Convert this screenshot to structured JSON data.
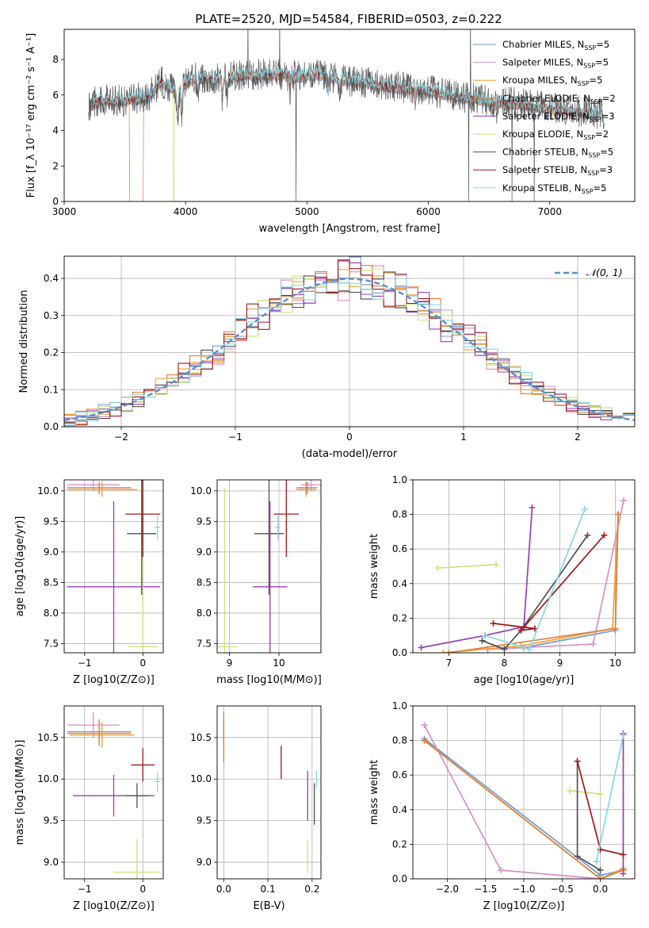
{
  "title": "PLATE=2520, MJD=54584, FIBERID=0503, z=0.222",
  "colors": {
    "Chabrier MILES": "#6a9bd6",
    "Salpeter MILES": "#d78fc9",
    "Kroupa MILES": "#f0a033",
    "Chabrier ELODIE": "#e0803a",
    "Salpeter ELODIE": "#9a3eb0",
    "Kroupa ELODIE": "#cfe07a",
    "Chabrier STELIB": "#505050",
    "Salpeter STELIB": "#a01818",
    "Kroupa STELIB": "#86d8e4"
  },
  "chart_data": [
    {
      "type": "line",
      "xlabel": "wavelength [Angstrom, rest frame]",
      "ylabel": "Flux [f_λ 10⁻¹⁷ erg cm⁻² s⁻¹ A⁻¹]",
      "xlim": [
        3000,
        7700
      ],
      "ylim": [
        0,
        9.7
      ],
      "xticks": [
        3000,
        4000,
        5000,
        6000,
        7000
      ],
      "yticks": [
        0,
        2,
        4,
        6,
        8
      ],
      "legend_position": "right",
      "grid": false,
      "legend": [
        {
          "name": "Chabrier MILES",
          "label": "Chabrier MILES, N",
          "sub": "SSP",
          "tail": "=5"
        },
        {
          "name": "Salpeter MILES",
          "label": "Salpeter MILES, N",
          "sub": "SSP",
          "tail": "=5"
        },
        {
          "name": "Kroupa MILES",
          "label": "Kroupa MILES, N",
          "sub": "SSP",
          "tail": "=5"
        },
        {
          "name": "Chabrier ELODIE",
          "label": "Chabrier ELODIE, N",
          "sub": "SSP",
          "tail": "=2"
        },
        {
          "name": "Salpeter ELODIE",
          "label": "Salpeter ELODIE, N",
          "sub": "SSP",
          "tail": "=3"
        },
        {
          "name": "Kroupa ELODIE",
          "label": "Kroupa ELODIE, N",
          "sub": "SSP",
          "tail": "=2"
        },
        {
          "name": "Chabrier STELIB",
          "label": "Chabrier STELIB, N",
          "sub": "SSP",
          "tail": "=5"
        },
        {
          "name": "Salpeter STELIB",
          "label": "Salpeter STELIB, N",
          "sub": "SSP",
          "tail": "=3"
        },
        {
          "name": "Kroupa STELIB",
          "label": "Kroupa STELIB, N",
          "sub": "SSP",
          "tail": "=5"
        }
      ],
      "continuum": [
        [
          3200,
          5.3
        ],
        [
          3300,
          5.7
        ],
        [
          3500,
          5.6
        ],
        [
          3700,
          5.9
        ],
        [
          3800,
          6.7
        ],
        [
          3950,
          6.0
        ],
        [
          4000,
          6.7
        ],
        [
          4100,
          6.9
        ],
        [
          4300,
          6.9
        ],
        [
          4500,
          7.1
        ],
        [
          4700,
          7.1
        ],
        [
          4900,
          7.0
        ],
        [
          5100,
          7.1
        ],
        [
          5300,
          6.8
        ],
        [
          5500,
          6.6
        ],
        [
          5700,
          6.4
        ],
        [
          6000,
          6.2
        ],
        [
          6200,
          5.9
        ],
        [
          6500,
          5.6
        ],
        [
          6800,
          5.4
        ],
        [
          7100,
          5.1
        ],
        [
          7400,
          4.9
        ]
      ],
      "absorption_features": [
        [
          3934,
          1.6
        ],
        [
          3968,
          1.5
        ],
        [
          4102,
          1.0
        ],
        [
          4227,
          0.5
        ],
        [
          4304,
          1.2
        ],
        [
          4340,
          1.0
        ],
        [
          4861,
          0.8
        ],
        [
          5175,
          0.9
        ],
        [
          5270,
          0.5
        ],
        [
          5893,
          0.6
        ],
        [
          6563,
          0.7
        ]
      ],
      "series_start": [
        3205,
        3210,
        3215,
        3220,
        3225,
        3230,
        3200,
        3235,
        3240
      ],
      "series_end": [
        7400,
        7405,
        7410,
        7415,
        7420,
        7425,
        7450,
        7430,
        7435
      ],
      "model_dropouts": [
        {
          "name": "Chabrier ELODIE",
          "start": 3540,
          "end": 3650
        },
        {
          "name": "Kroupa ELODIE",
          "start": 3900,
          "end": 3905
        },
        {
          "name": "Salpeter MILES",
          "start": 7420,
          "end": 7430
        }
      ]
    },
    {
      "type": "line",
      "xlabel": "(data-model)/error",
      "ylabel": "Normed distribution",
      "xlim": [
        -2.5,
        2.5
      ],
      "ylim": [
        0,
        0.46
      ],
      "xticks": [
        -2,
        -1,
        0,
        1,
        2
      ],
      "yticks": [
        0.0,
        0.1,
        0.2,
        0.3,
        0.4
      ],
      "grid": true,
      "legend_position": "top-right",
      "gaussian_label": "𝒩(0, 1)",
      "bin_width": 0.1,
      "peak_bin_value": [
        0.33,
        0.37,
        0.36,
        0.38,
        0.36,
        0.35,
        0.35,
        0.36,
        0.34
      ],
      "bin_values_by_series": [
        [
          0.05,
          0.04,
          0.05,
          0.12,
          0.11,
          0.1,
          0.14,
          0.12,
          0.16,
          0.18,
          0.22,
          0.2,
          0.24,
          0.26,
          0.28,
          0.3,
          0.32,
          0.34,
          0.33,
          0.38,
          0.36,
          0.37,
          0.35,
          0.39,
          0.4,
          0.39,
          0.41,
          0.38,
          0.37,
          0.36,
          0.31,
          0.3,
          0.29,
          0.27,
          0.24,
          0.2,
          0.19,
          0.16,
          0.15,
          0.14,
          0.13,
          0.1,
          0.09,
          0.08,
          0.07,
          0.06,
          0.05,
          0.05,
          0.04,
          0.04
        ]
      ]
    },
    {
      "type": "scatter",
      "xlabel": "Z [log10(Z/Z⊙)]",
      "ylabel": "age [log10(age/yr)]",
      "xlim": [
        -1.35,
        0.35
      ],
      "ylim": [
        7.35,
        10.18
      ],
      "xticks": [
        -1,
        0
      ],
      "yticks": [
        7.5,
        8.0,
        8.5,
        9.0,
        9.5,
        10.0
      ],
      "grid": true,
      "points": [
        {
          "name": "Chabrier MILES",
          "x": -0.75,
          "y": 10.05,
          "xerr": 0.55,
          "yerr": 0.1
        },
        {
          "name": "Salpeter MILES",
          "x": -0.85,
          "y": 10.1,
          "xerr": 0.45,
          "yerr": 0.1
        },
        {
          "name": "Kroupa MILES",
          "x": -0.7,
          "y": 10.02,
          "xerr": 0.6,
          "yerr": 0.12
        },
        {
          "name": "Chabrier ELODIE",
          "x": -0.75,
          "y": 10.05,
          "xerr": 0.55,
          "yerr": 0.1
        },
        {
          "name": "Salpeter ELODIE",
          "x": -0.5,
          "y": 8.43,
          "xerr": 0.8,
          "yerr": 1.4
        },
        {
          "name": "Kroupa ELODIE",
          "x": 0.0,
          "y": 7.45,
          "xerr": 0.25,
          "yerr": 2.6
        },
        {
          "name": "Chabrier STELIB",
          "x": -0.02,
          "y": 9.3,
          "xerr": 0.25,
          "yerr": 1.0
        },
        {
          "name": "Salpeter STELIB",
          "x": 0.0,
          "y": 9.62,
          "xerr": 0.3,
          "yerr": 0.7
        },
        {
          "name": "Kroupa STELIB",
          "x": 0.25,
          "y": 9.4,
          "xerr": 0.05,
          "yerr": 0.2
        }
      ]
    },
    {
      "type": "scatter",
      "xlabel": "mass [log10(M/M⊙)]",
      "ylabel": "",
      "xlim": [
        8.75,
        10.85
      ],
      "ylim": [
        7.35,
        10.18
      ],
      "xticks": [
        9,
        10
      ],
      "yticks": [
        7.5,
        8.0,
        8.5,
        9.0,
        9.5,
        10.0
      ],
      "grid": true,
      "points": [
        {
          "name": "Chabrier MILES",
          "x": 10.58,
          "y": 10.05,
          "xerr": 0.2,
          "yerr": 0.1
        },
        {
          "name": "Salpeter MILES",
          "x": 10.65,
          "y": 10.1,
          "xerr": 0.2,
          "yerr": 0.1
        },
        {
          "name": "Kroupa MILES",
          "x": 10.55,
          "y": 10.02,
          "xerr": 0.2,
          "yerr": 0.12
        },
        {
          "name": "Chabrier ELODIE",
          "x": 10.55,
          "y": 10.05,
          "xerr": 0.2,
          "yerr": 0.1
        },
        {
          "name": "Salpeter ELODIE",
          "x": 9.82,
          "y": 8.43,
          "xerr": 0.35,
          "yerr": 1.4
        },
        {
          "name": "Kroupa ELODIE",
          "x": 8.9,
          "y": 7.45,
          "xerr": 0.25,
          "yerr": 2.6
        },
        {
          "name": "Chabrier STELIB",
          "x": 9.8,
          "y": 9.3,
          "xerr": 0.3,
          "yerr": 1.0
        },
        {
          "name": "Salpeter STELIB",
          "x": 10.15,
          "y": 9.62,
          "xerr": 0.25,
          "yerr": 0.7
        },
        {
          "name": "Kroupa STELIB",
          "x": 9.98,
          "y": 9.4,
          "xerr": 0.05,
          "yerr": 0.2
        }
      ]
    },
    {
      "type": "line",
      "xlabel": "age [log10(age/yr)]",
      "ylabel": "mass weight",
      "xlim": [
        6.35,
        10.35
      ],
      "ylim": [
        0,
        1.0
      ],
      "xticks": [
        7,
        8,
        9,
        10
      ],
      "yticks": [
        0.0,
        0.2,
        0.4,
        0.6,
        0.8,
        1.0
      ],
      "grid": true,
      "series": [
        {
          "name": "Chabrier MILES",
          "points": [
            [
              7.7,
              0.02
            ],
            [
              8.35,
              0.03
            ],
            [
              10.0,
              0.13
            ],
            [
              10.05,
              0.8
            ]
          ]
        },
        {
          "name": "Salpeter MILES",
          "points": [
            [
              7.7,
              0.02
            ],
            [
              9.6,
              0.05
            ],
            [
              10.15,
              0.88
            ]
          ]
        },
        {
          "name": "Kroupa MILES",
          "points": [
            [
              6.9,
              0.0
            ],
            [
              8.3,
              0.04
            ],
            [
              9.95,
              0.14
            ],
            [
              10.05,
              0.8
            ]
          ]
        },
        {
          "name": "Chabrier ELODIE",
          "points": [
            [
              7.0,
              0.0
            ],
            [
              10.0,
              0.14
            ],
            [
              10.05,
              0.8
            ]
          ]
        },
        {
          "name": "Salpeter ELODIE",
          "points": [
            [
              6.5,
              0.03
            ],
            [
              7.65,
              0.1
            ],
            [
              8.35,
              0.15
            ],
            [
              8.5,
              0.84
            ]
          ]
        },
        {
          "name": "Kroupa ELODIE",
          "points": [
            [
              6.8,
              0.49
            ],
            [
              7.85,
              0.51
            ]
          ]
        },
        {
          "name": "Chabrier STELIB",
          "points": [
            [
              7.6,
              0.07
            ],
            [
              8.0,
              0.02
            ],
            [
              8.3,
              0.13
            ],
            [
              9.5,
              0.68
            ]
          ]
        },
        {
          "name": "Salpeter STELIB",
          "points": [
            [
              7.8,
              0.17
            ],
            [
              8.55,
              0.14
            ],
            [
              8.3,
              0.13
            ],
            [
              9.8,
              0.68
            ]
          ]
        },
        {
          "name": "Kroupa STELIB",
          "points": [
            [
              7.65,
              0.1
            ],
            [
              8.45,
              0.02
            ],
            [
              9.45,
              0.83
            ]
          ]
        }
      ]
    },
    {
      "type": "scatter",
      "xlabel": "Z [log10(Z/Z⊙)]",
      "ylabel": "mass [log10(M/M⊙)]",
      "xlim": [
        -1.35,
        0.35
      ],
      "ylim": [
        8.8,
        10.88
      ],
      "xticks": [
        -1,
        0
      ],
      "yticks": [
        9.0,
        9.5,
        10.0,
        10.5
      ],
      "grid": true,
      "points": [
        {
          "name": "Chabrier MILES",
          "x": -0.75,
          "y": 10.57,
          "xerr": 0.55,
          "yerr": 0.15
        },
        {
          "name": "Salpeter MILES",
          "x": -0.85,
          "y": 10.65,
          "xerr": 0.45,
          "yerr": 0.15
        },
        {
          "name": "Kroupa MILES",
          "x": -0.7,
          "y": 10.53,
          "xerr": 0.55,
          "yerr": 0.15
        },
        {
          "name": "Chabrier ELODIE",
          "x": -0.75,
          "y": 10.55,
          "xerr": 0.55,
          "yerr": 0.15
        },
        {
          "name": "Salpeter ELODIE",
          "x": -0.5,
          "y": 9.8,
          "xerr": 0.7,
          "yerr": 0.25
        },
        {
          "name": "Kroupa ELODIE",
          "x": -0.1,
          "y": 8.88,
          "xerr": 0.4,
          "yerr": 0.4
        },
        {
          "name": "Chabrier STELIB",
          "x": -0.1,
          "y": 9.8,
          "xerr": 0.2,
          "yerr": 0.15
        },
        {
          "name": "Salpeter STELIB",
          "x": 0.0,
          "y": 10.17,
          "xerr": 0.2,
          "yerr": 0.2
        },
        {
          "name": "Kroupa STELIB",
          "x": 0.25,
          "y": 9.97,
          "xerr": 0.05,
          "yerr": 0.12
        }
      ]
    },
    {
      "type": "scatter",
      "xlabel": "E(B-V)",
      "ylabel": "",
      "xlim": [
        -0.015,
        0.22
      ],
      "ylim": [
        8.8,
        10.88
      ],
      "xticks": [
        0.0,
        0.1,
        0.2
      ],
      "yticks": [
        9.0,
        9.5,
        10.0,
        10.5
      ],
      "grid": true,
      "points": [
        {
          "name": "Chabrier MILES",
          "x": 0.0,
          "y": 10.57,
          "yerr": 0.12
        },
        {
          "name": "Salpeter MILES",
          "x": 0.0,
          "y": 10.65,
          "yerr": 0.15
        },
        {
          "name": "Kroupa MILES",
          "x": 0.0,
          "y": 10.5,
          "yerr": 0.12
        },
        {
          "name": "Chabrier ELODIE",
          "x": 0.0,
          "y": 10.5,
          "yerr": 0.3
        },
        {
          "name": "Salpeter ELODIE",
          "x": 0.19,
          "y": 9.8,
          "yerr": 0.3
        },
        {
          "name": "Kroupa ELODIE",
          "x": 0.19,
          "y": 9.07,
          "yerr": 0.2
        },
        {
          "name": "Chabrier STELIB",
          "x": 0.205,
          "y": 9.7,
          "yerr": 0.25
        },
        {
          "name": "Salpeter STELIB",
          "x": 0.13,
          "y": 10.2,
          "yerr": 0.2
        },
        {
          "name": "Kroupa STELIB",
          "x": 0.21,
          "y": 10.0,
          "yerr": 0.1
        }
      ]
    },
    {
      "type": "line",
      "xlabel": "Z [log10(Z/Z⊙)]",
      "ylabel": "mass weight",
      "xlim": [
        -2.45,
        0.45
      ],
      "ylim": [
        0,
        1.0
      ],
      "xticks": [
        -2.0,
        -1.5,
        -1.0,
        -0.5,
        0.0
      ],
      "yticks": [
        0.0,
        0.2,
        0.4,
        0.6,
        0.8,
        1.0
      ],
      "grid": true,
      "series": [
        {
          "name": "Chabrier MILES",
          "points": [
            [
              -2.3,
              0.81
            ],
            [
              -0.0,
              0.02
            ],
            [
              0.3,
              0.05
            ]
          ]
        },
        {
          "name": "Salpeter MILES",
          "points": [
            [
              -2.3,
              0.89
            ],
            [
              -1.3,
              0.05
            ],
            [
              0.0,
              0.0
            ],
            [
              0.3,
              0.05
            ]
          ]
        },
        {
          "name": "Kroupa MILES",
          "points": [
            [
              -2.3,
              0.8
            ],
            [
              0.0,
              0.0
            ],
            [
              0.3,
              0.06
            ]
          ]
        },
        {
          "name": "Chabrier ELODIE",
          "points": [
            [
              -2.3,
              0.8
            ],
            [
              0.0,
              0.0
            ],
            [
              0.3,
              0.05
            ]
          ]
        },
        {
          "name": "Salpeter ELODIE",
          "points": [
            [
              0.3,
              0.84
            ],
            [
              0.3,
              0.03
            ]
          ]
        },
        {
          "name": "Kroupa ELODIE",
          "points": [
            [
              -0.4,
              0.51
            ],
            [
              0.0,
              0.49
            ]
          ]
        },
        {
          "name": "Chabrier STELIB",
          "points": [
            [
              -0.3,
              0.68
            ],
            [
              -0.3,
              0.13
            ],
            [
              0.0,
              0.05
            ]
          ]
        },
        {
          "name": "Salpeter STELIB",
          "points": [
            [
              -0.3,
              0.68
            ],
            [
              0.0,
              0.17
            ],
            [
              0.3,
              0.14
            ]
          ]
        },
        {
          "name": "Kroupa STELIB",
          "points": [
            [
              -0.05,
              0.1
            ],
            [
              0.3,
              0.83
            ]
          ]
        }
      ]
    }
  ]
}
